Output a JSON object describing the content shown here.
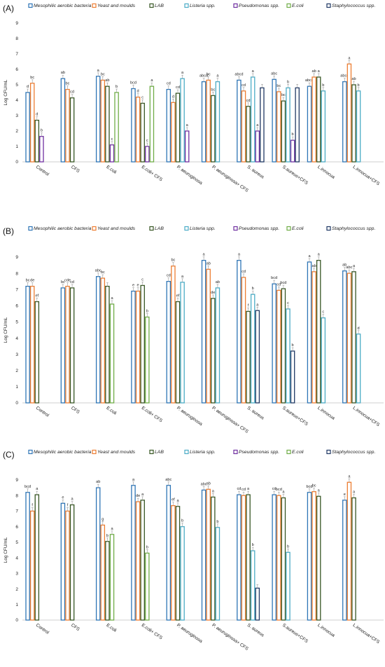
{
  "chart_data": [
    {
      "type": "bar",
      "panel_label": "(A)",
      "ylabel": "Log CFU/mL",
      "ylim": [
        0,
        9
      ],
      "yticks": [
        "0",
        "1",
        "2",
        "3",
        "4",
        "5",
        "6",
        "7",
        "8",
        "9"
      ],
      "categories": [
        "Control",
        "CFS",
        "E.coli",
        "E.coli+ CFS",
        "P. aeuruginosa",
        "P. aeuruginosa+ CFS",
        "S. aureus",
        "S.aureus+CFS",
        "L.innocua",
        "L.innocua+CFS"
      ],
      "series": [
        {
          "name": "Mesophilic aerobic bacteria",
          "color": "#2e75b6",
          "values": [
            4.5,
            5.4,
            5.55,
            4.75,
            4.7,
            5.2,
            5.3,
            5.35,
            4.9,
            5.2
          ],
          "labels": [
            "d",
            "ab",
            "a",
            "bcd",
            "cd",
            "abcd",
            "abcd",
            "abc",
            "abcd",
            "abcd"
          ]
        },
        {
          "name": "Yeast and moulds",
          "color": "#ed7d31",
          "values": [
            5.1,
            4.7,
            5.3,
            4.2,
            3.85,
            5.3,
            4.6,
            4.55,
            5.5,
            6.35
          ],
          "labels": [
            "bc",
            "bc",
            "bc",
            "d",
            "d",
            "bc",
            "cd",
            "bc",
            "ab",
            "a"
          ]
        },
        {
          "name": "LAB",
          "color": "#375623",
          "values": [
            2.7,
            4.15,
            4.9,
            3.8,
            4.45,
            4.3,
            3.6,
            3.95,
            5.5,
            5.0
          ],
          "labels": [
            "d",
            "cd",
            "ab",
            "c",
            "cd",
            "bc",
            "cd",
            "bc",
            "a",
            "ab"
          ]
        },
        {
          "name": "Listeria spp.",
          "color": "#4bacc6",
          "values": [
            null,
            null,
            null,
            null,
            5.4,
            5.2,
            5.5,
            4.8,
            4.6,
            4.6
          ],
          "labels": [
            "",
            "",
            "",
            "",
            "a",
            "a",
            "a",
            "b",
            "b",
            "b"
          ]
        },
        {
          "name": "Pseudomonas spp.",
          "color": "#7030a0",
          "values": [
            1.65,
            null,
            1.1,
            1.0,
            2.0,
            null,
            2.0,
            1.4,
            null,
            null
          ],
          "labels": [
            "b",
            "",
            "c",
            "c",
            "a",
            "",
            "a",
            "b",
            "",
            ""
          ]
        },
        {
          "name": "E.coli",
          "color": "#70ad47",
          "values": [
            null,
            null,
            4.5,
            4.9,
            null,
            null,
            null,
            null,
            null,
            null
          ],
          "labels": [
            "",
            "",
            "b",
            "a",
            "",
            "",
            "",
            "",
            "",
            ""
          ]
        },
        {
          "name": "Staphylococcus spp.",
          "color": "#203864",
          "values": [
            null,
            null,
            null,
            null,
            null,
            null,
            4.8,
            4.8,
            null,
            null
          ],
          "labels": [
            "",
            "",
            "",
            "",
            "",
            "",
            "",
            "",
            "",
            ""
          ]
        }
      ]
    },
    {
      "type": "bar",
      "panel_label": "(B)",
      "ylabel": "Log CFU/mL",
      "ylim": [
        0,
        9
      ],
      "yticks": [
        "0",
        "1",
        "2",
        "3",
        "4",
        "5",
        "6",
        "7",
        "8",
        "9"
      ],
      "categories": [
        "Control",
        "CFS",
        "E.coli",
        "E.coli+ CFS",
        "P. aeuruginosa",
        "P. aeuruginosa+ CFS",
        "S. aureus",
        "S.aureus+CFS",
        "L.innocua",
        "L.innocua+CFS"
      ],
      "series": [
        {
          "name": "Mesophilic aerobic bacteria",
          "color": "#2e75b6",
          "values": [
            7.2,
            7.1,
            7.8,
            6.9,
            7.5,
            8.8,
            8.8,
            7.35,
            8.7,
            8.15
          ],
          "labels": [
            "bc",
            "bc",
            "abc",
            "e",
            "cd",
            "a",
            "a",
            "bcd",
            "a",
            "ab"
          ]
        },
        {
          "name": "Yeast and moulds",
          "color": "#ed7d31",
          "values": [
            7.2,
            7.2,
            7.7,
            6.9,
            8.45,
            8.25,
            7.75,
            6.95,
            8.1,
            8.0
          ],
          "labels": [
            "de",
            "cde",
            "bc",
            "e",
            "bc",
            "ab",
            "cd",
            "cd",
            "ab",
            "abc"
          ]
        },
        {
          "name": "LAB",
          "color": "#375623",
          "values": [
            6.25,
            7.1,
            7.2,
            7.25,
            6.25,
            6.45,
            5.65,
            7.05,
            8.8,
            8.1
          ],
          "labels": [
            "ef",
            "cd",
            "",
            "c",
            "ef",
            "de",
            "f",
            "bcd",
            "a",
            "a"
          ]
        },
        {
          "name": "Listeria spp.",
          "color": "#4bacc6",
          "values": [
            null,
            null,
            null,
            null,
            7.45,
            7.1,
            6.7,
            5.8,
            5.25,
            4.25
          ],
          "labels": [
            "",
            "",
            "",
            "",
            "a",
            "ab",
            "b",
            "c",
            "c",
            "d"
          ]
        },
        {
          "name": "Pseudomonas spp.",
          "color": "#7030a0",
          "values": [
            null,
            null,
            null,
            null,
            null,
            null,
            null,
            null,
            null,
            null
          ],
          "labels": [
            "",
            "",
            "",
            "",
            "",
            "",
            "",
            "",
            "",
            ""
          ]
        },
        {
          "name": "E.coli",
          "color": "#70ad47",
          "values": [
            null,
            null,
            6.1,
            5.3,
            null,
            null,
            null,
            null,
            null,
            null
          ],
          "labels": [
            "",
            "",
            "a",
            "b",
            "",
            "",
            "",
            "",
            "",
            ""
          ]
        },
        {
          "name": "Staphylococcus spp.",
          "color": "#203864",
          "values": [
            null,
            null,
            null,
            null,
            null,
            null,
            5.7,
            3.2,
            null,
            null
          ],
          "labels": [
            "",
            "",
            "",
            "",
            "",
            "",
            "a",
            "b",
            "",
            ""
          ]
        }
      ]
    },
    {
      "type": "bar",
      "panel_label": "(C)",
      "ylabel": "Log CFU/mL",
      "ylim": [
        0,
        9
      ],
      "yticks": [
        "0",
        "1",
        "2",
        "3",
        "4",
        "5",
        "6",
        "7",
        "8",
        "9"
      ],
      "categories": [
        "Control",
        "CFS",
        "E.coli",
        "E.coli+ CFS",
        "P. aeuruginosa",
        "P. aeuruginosa+ CFS",
        "S. aureus",
        "S.aureus+CFS",
        "L.innocua",
        "L.innocua+CFS"
      ],
      "series": [
        {
          "name": "Mesophilic aerobic bacteria",
          "color": "#2e75b6",
          "values": [
            8.2,
            7.5,
            8.5,
            8.65,
            8.65,
            8.35,
            8.05,
            8.05,
            8.2,
            7.7
          ],
          "labels": [
            "bcd",
            "e",
            "ab",
            "a",
            "abc",
            "abc",
            "cd",
            "cd",
            "bcd",
            "e"
          ]
        },
        {
          "name": "Yeast and moulds",
          "color": "#ed7d31",
          "values": [
            7.0,
            7.0,
            6.1,
            7.6,
            7.35,
            8.4,
            8.0,
            8.0,
            8.25,
            8.85
          ],
          "labels": [
            "f",
            "f",
            "g",
            "de",
            "ef",
            "ab",
            "cd",
            "bcd",
            "bc",
            "a"
          ]
        },
        {
          "name": "LAB",
          "color": "#375623",
          "values": [
            8.05,
            7.4,
            5.05,
            7.7,
            7.3,
            7.9,
            8.05,
            7.85,
            7.95,
            7.85
          ],
          "labels": [
            "a",
            "a",
            "b",
            "a",
            "a",
            "a",
            "a",
            "a",
            "a",
            "a"
          ]
        },
        {
          "name": "Listeria spp.",
          "color": "#4bacc6",
          "values": [
            null,
            null,
            null,
            null,
            6.0,
            5.95,
            4.45,
            4.35,
            null,
            null
          ],
          "labels": [
            "",
            "",
            "",
            "",
            "b",
            "b",
            "b",
            "b",
            "",
            ""
          ]
        },
        {
          "name": "Pseudomonas spp.",
          "color": "#7030a0",
          "values": [
            null,
            null,
            null,
            null,
            null,
            null,
            null,
            null,
            null,
            null
          ],
          "labels": [
            "",
            "",
            "",
            "",
            "",
            "",
            "",
            "",
            "",
            ""
          ]
        },
        {
          "name": "E.coli",
          "color": "#70ad47",
          "values": [
            null,
            null,
            5.5,
            4.3,
            null,
            null,
            null,
            null,
            null,
            null
          ],
          "labels": [
            "",
            "",
            "a",
            "b",
            "",
            "",
            "",
            "",
            "",
            ""
          ]
        },
        {
          "name": "Staphylococcus spp.",
          "color": "#203864",
          "values": [
            null,
            null,
            null,
            null,
            null,
            null,
            2.05,
            null,
            null,
            null
          ],
          "labels": [
            "",
            "",
            "",
            "",
            "",
            "",
            "",
            "",
            "",
            ""
          ]
        }
      ]
    }
  ]
}
